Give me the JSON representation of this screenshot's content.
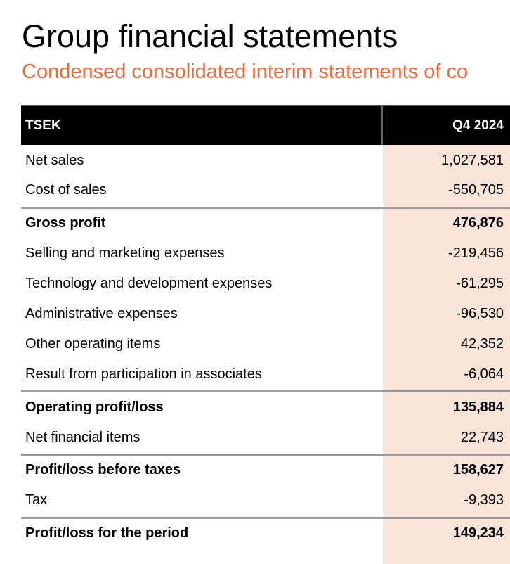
{
  "header": {
    "title": "Group financial statements",
    "subtitle": "Condensed consolidated interim statements of co"
  },
  "table": {
    "unit_label": "TSEK",
    "period_label": "Q4 2024",
    "highlight_color": "#f9e4da",
    "rows": [
      {
        "label": "Net sales",
        "value": "1,027,581",
        "bold": false
      },
      {
        "label": "Cost of sales",
        "value": "-550,705",
        "bold": false
      },
      {
        "label": "Gross profit",
        "value": "476,876",
        "bold": true
      },
      {
        "label": "Selling and marketing expenses",
        "value": "-219,456",
        "bold": false
      },
      {
        "label": "Technology and development expenses",
        "value": "-61,295",
        "bold": false
      },
      {
        "label": "Administrative expenses",
        "value": "-96,530",
        "bold": false
      },
      {
        "label": "Other operating items",
        "value": "42,352",
        "bold": false
      },
      {
        "label": "Result from participation in associates",
        "value": "-6,064",
        "bold": false
      },
      {
        "label": "Operating profit/loss",
        "value": "135,884",
        "bold": true
      },
      {
        "label": "Net financial items",
        "value": "22,743",
        "bold": false
      },
      {
        "label": "Profit/loss before taxes",
        "value": "158,627",
        "bold": true
      },
      {
        "label": "Tax",
        "value": "-9,393",
        "bold": false
      },
      {
        "label": "Profit/loss for the period",
        "value": "149,234",
        "bold": true
      }
    ]
  }
}
